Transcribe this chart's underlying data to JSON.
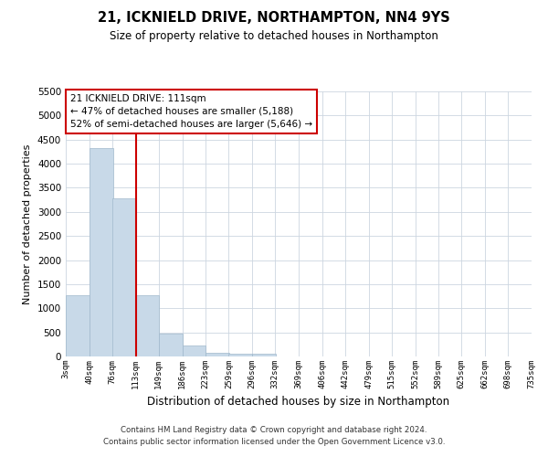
{
  "title": "21, ICKNIELD DRIVE, NORTHAMPTON, NN4 9YS",
  "subtitle": "Size of property relative to detached houses in Northampton",
  "xlabel": "Distribution of detached houses by size in Northampton",
  "ylabel": "Number of detached properties",
  "bar_left_edges": [
    3,
    40,
    76,
    113,
    149,
    186,
    223,
    259,
    296,
    332,
    369,
    406,
    442,
    479,
    515,
    552,
    589,
    625,
    662,
    698
  ],
  "bar_heights": [
    1270,
    4330,
    3280,
    1280,
    480,
    230,
    75,
    50,
    50,
    0,
    0,
    0,
    0,
    0,
    0,
    0,
    0,
    0,
    0,
    0
  ],
  "bin_width": 37,
  "bar_color": "#c8d9e8",
  "bar_edge_color": "#a0b8cc",
  "marker_x": 113,
  "marker_color": "#cc0000",
  "tick_labels": [
    "3sqm",
    "40sqm",
    "76sqm",
    "113sqm",
    "149sqm",
    "186sqm",
    "223sqm",
    "259sqm",
    "296sqm",
    "332sqm",
    "369sqm",
    "406sqm",
    "442sqm",
    "479sqm",
    "515sqm",
    "552sqm",
    "589sqm",
    "625sqm",
    "662sqm",
    "698sqm",
    "735sqm"
  ],
  "tick_positions": [
    3,
    40,
    76,
    113,
    149,
    186,
    223,
    259,
    296,
    332,
    369,
    406,
    442,
    479,
    515,
    552,
    589,
    625,
    662,
    698,
    735
  ],
  "ylim": [
    0,
    5500
  ],
  "xlim": [
    3,
    735
  ],
  "yticks": [
    0,
    500,
    1000,
    1500,
    2000,
    2500,
    3000,
    3500,
    4000,
    4500,
    5000,
    5500
  ],
  "annotation_title": "21 ICKNIELD DRIVE: 111sqm",
  "annotation_line1": "← 47% of detached houses are smaller (5,188)",
  "annotation_line2": "52% of semi-detached houses are larger (5,646) →",
  "annotation_box_color": "#ffffff",
  "annotation_box_edge": "#cc0000",
  "footer1": "Contains HM Land Registry data © Crown copyright and database right 2024.",
  "footer2": "Contains public sector information licensed under the Open Government Licence v3.0.",
  "background_color": "#ffffff",
  "grid_color": "#ccd6e0"
}
